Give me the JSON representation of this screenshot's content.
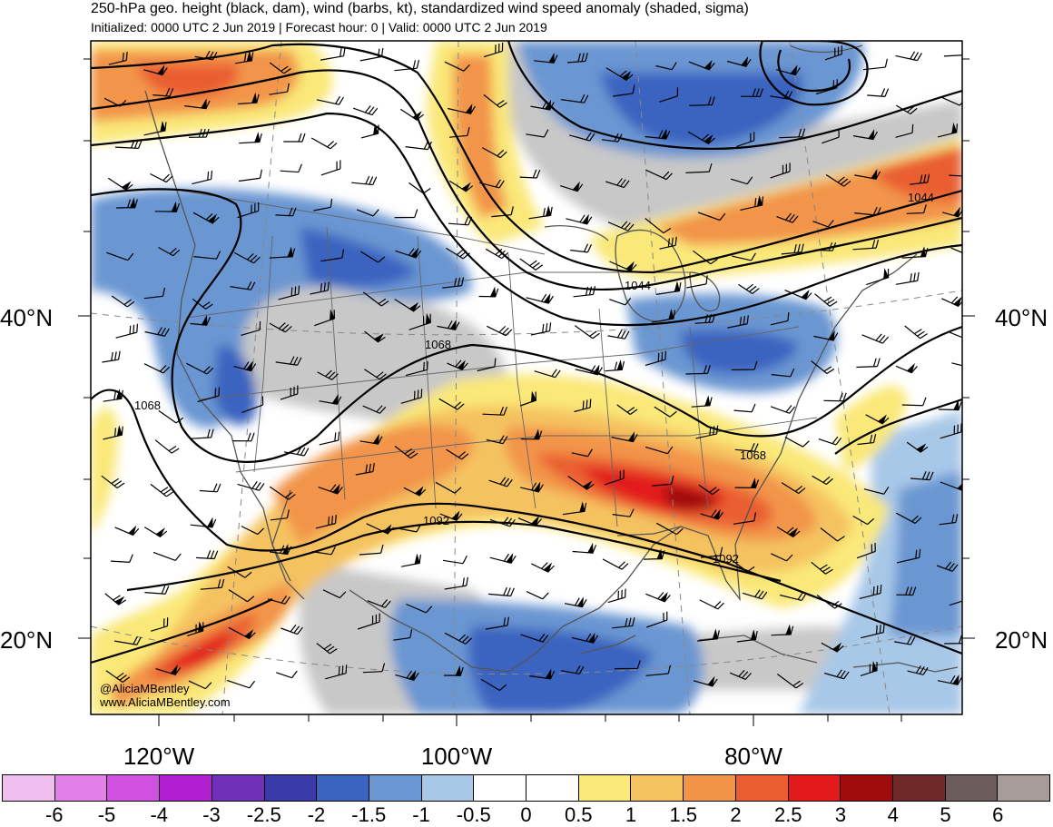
{
  "header": {
    "title": "250-hPa geo. height (black, dam), wind (barbs, kt), standardized wind speed anomaly (shaded, sigma)",
    "subtitle": "Initialized: 0000 UTC 2 Jun 2019 | Forecast hour: 0 | Valid: 0000 UTC 2 Jun 2019"
  },
  "map": {
    "lat_labels": [
      "40°N",
      "20°N"
    ],
    "lon_labels": [
      "120°W",
      "100°W",
      "80°W"
    ],
    "contour_labels": [
      "1044",
      "1044",
      "1068",
      "1068",
      "1068",
      "1092",
      "1092"
    ],
    "credit": [
      "@AliciaMBentley",
      "www.AliciaMBentley.com"
    ]
  },
  "colorbar": {
    "colors": [
      "#f0bff0",
      "#e080e8",
      "#d050e0",
      "#b020d0",
      "#7030b8",
      "#3a3aa8",
      "#3a64c0",
      "#6a96d2",
      "#a8c8e8",
      "#ffffff",
      "#ffffff",
      "#fae878",
      "#f5c260",
      "#f29448",
      "#ea5e32",
      "#e21a1c",
      "#a00c0c",
      "#6e2a28",
      "#6c5c5c",
      "#a89c9a"
    ],
    "labels": [
      "-6",
      "-5",
      "-4",
      "-3",
      "-2.5",
      "-2",
      "-1.5",
      "-1",
      "-0.5",
      "0",
      "0.5",
      "1",
      "1.5",
      "2",
      "2.5",
      "3",
      "4",
      "5",
      "6"
    ]
  }
}
